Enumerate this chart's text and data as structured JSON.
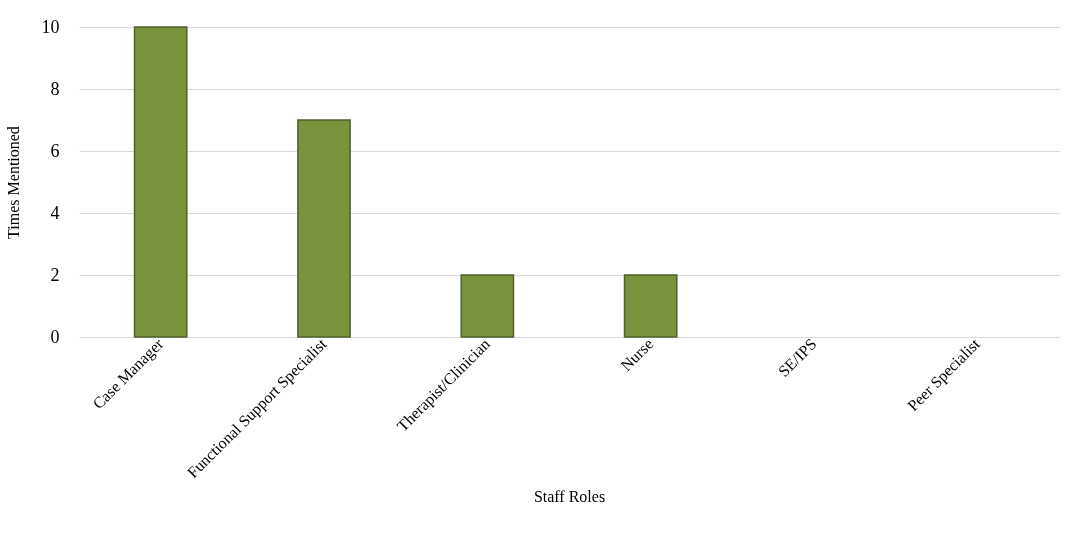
{
  "chart_data": {
    "type": "bar",
    "xlabel": "Staff Roles",
    "ylabel": "Times Mentioned",
    "categories": [
      "Case Manager",
      "Functional Support Specialist",
      "Therapist/Clinician",
      "Nurse",
      "SE/IPS",
      "Peer Specialist"
    ],
    "values": [
      10,
      7,
      2,
      2,
      0,
      0
    ],
    "color": "#77933c",
    "ylim": [
      0,
      10
    ],
    "yticks": [
      0,
      2,
      4,
      6,
      8,
      10
    ],
    "grid": "y"
  }
}
